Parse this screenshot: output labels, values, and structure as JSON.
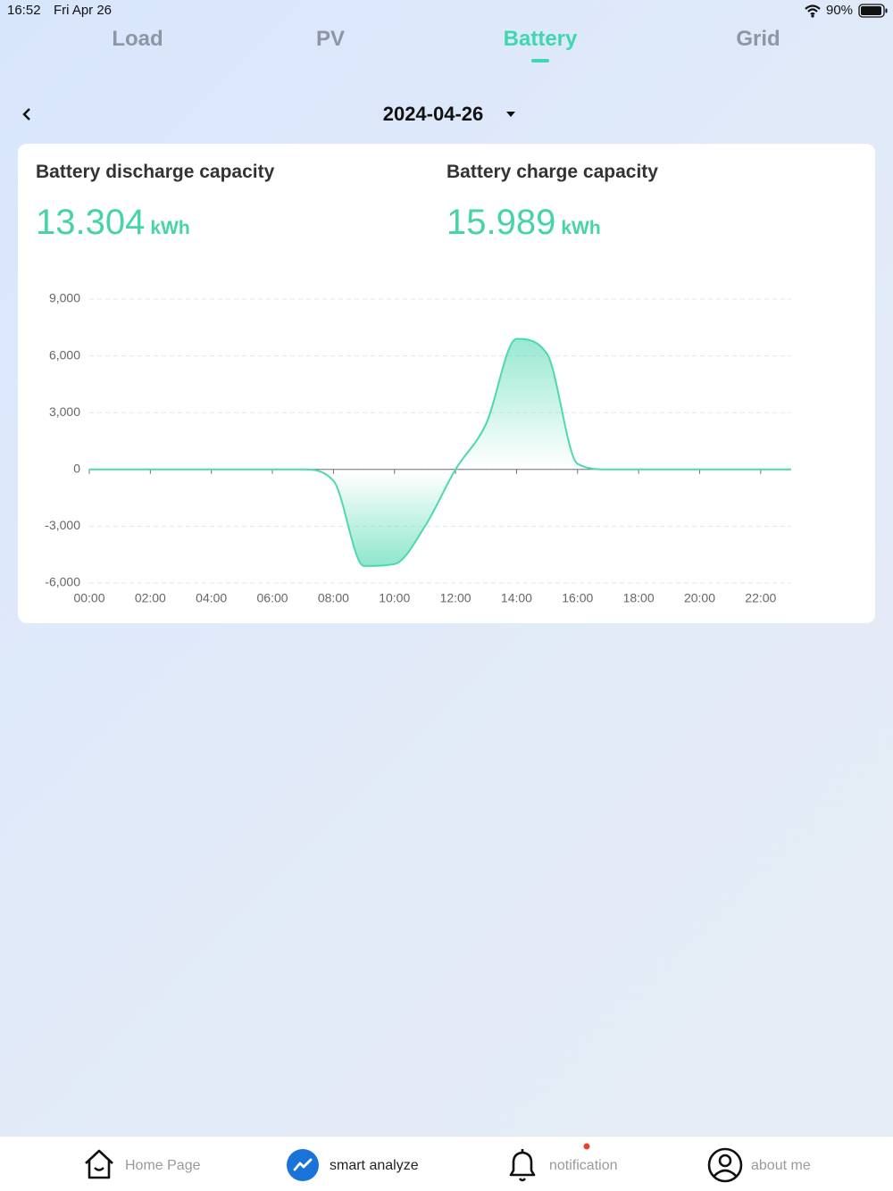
{
  "status_bar": {
    "time": "16:52",
    "date": "Fri Apr 26",
    "battery": "90%"
  },
  "tabs": [
    "Load",
    "PV",
    "Battery",
    "Grid"
  ],
  "active_tab": 2,
  "date_picker": {
    "date": "2024-04-26"
  },
  "summary": [
    {
      "label": "Battery discharge capacity",
      "value": 13.304,
      "unit": "kWh"
    },
    {
      "label": "Battery charge capacity",
      "value": 15.989,
      "unit": "kWh"
    }
  ],
  "chart_data": {
    "type": "area",
    "color": "#4dd8b0",
    "categories": [
      "00:00",
      null,
      "02:00",
      null,
      "04:00",
      null,
      "06:00",
      null,
      "08:00",
      null,
      "10:00",
      null,
      "12:00",
      null,
      "14:00",
      null,
      "16:00",
      null,
      "18:00",
      null,
      "20:00",
      null,
      "22:00",
      null
    ],
    "values": [
      0,
      0,
      0,
      0,
      0,
      0,
      0,
      0,
      -600,
      -5100,
      -5000,
      -3000,
      0,
      2400,
      6900,
      6100,
      300,
      0,
      0,
      0,
      0,
      0,
      0,
      0
    ],
    "ylim": [
      -6000,
      9000
    ],
    "yticks": [
      {
        "value": -6000,
        "label": "-6,000"
      },
      {
        "value": -3000,
        "label": "-3,000"
      },
      0,
      {
        "value": 3000,
        "label": "3,000"
      },
      {
        "value": 6000,
        "label": "6,000"
      },
      {
        "value": 9000,
        "label": "9,000"
      }
    ],
    "grid": true
  },
  "nav": [
    {
      "label": "Home Page"
    },
    {
      "label": "smart analyze"
    },
    {
      "label": "notification"
    },
    {
      "label": "about me"
    }
  ]
}
